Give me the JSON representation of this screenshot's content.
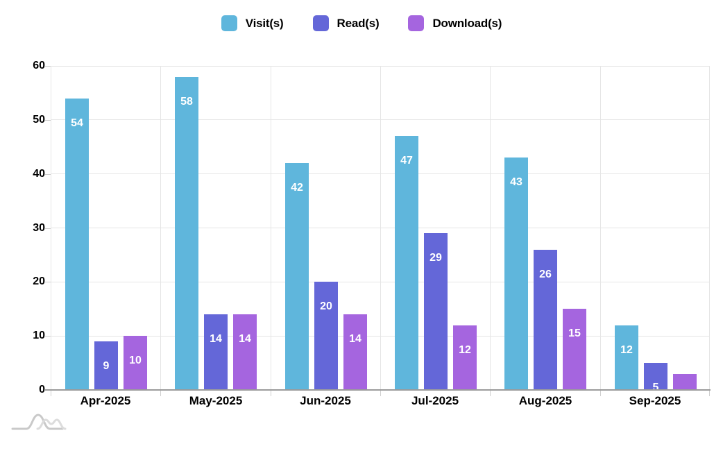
{
  "chart_data": {
    "type": "bar",
    "title": "",
    "categories": [
      "Apr-2025",
      "May-2025",
      "Jun-2025",
      "Jul-2025",
      "Aug-2025",
      "Sep-2025"
    ],
    "series": [
      {
        "name": "Visit(s)",
        "color": "#5fb6dc",
        "values": [
          54,
          58,
          42,
          47,
          43,
          12
        ]
      },
      {
        "name": "Read(s)",
        "color": "#6467d8",
        "values": [
          9,
          14,
          20,
          29,
          26,
          5
        ]
      },
      {
        "name": "Download(s)",
        "color": "#a565df",
        "values": [
          10,
          14,
          14,
          12,
          15,
          3
        ]
      }
    ],
    "ylim": [
      0,
      60
    ],
    "yticks": [
      0,
      10,
      20,
      30,
      40,
      50,
      60
    ],
    "xlabel": "",
    "ylabel": "",
    "grid": true,
    "legend_position": "top",
    "bar_value_labels_visible": true,
    "bar_value_label_color": "#ffffff"
  },
  "colors": {
    "background": "#ffffff",
    "gridline": "#e5e5e5",
    "axis_line": "#9b9b9b",
    "tick": "#cfcfcf",
    "axis_text": "#000000",
    "watermark": "#c9c9c9"
  },
  "watermark": {
    "icon": "amcharts-logo"
  }
}
